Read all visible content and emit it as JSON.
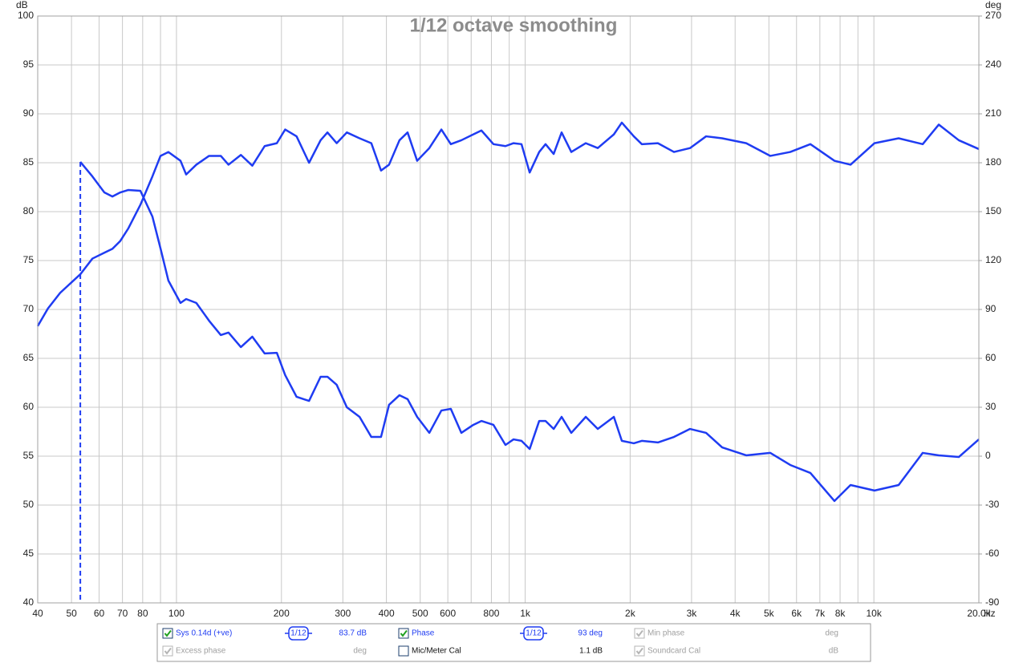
{
  "chart_data": {
    "type": "line",
    "title": "1/12 octave smoothing",
    "y_label": "dB",
    "y2_label": "deg",
    "x_label": "Hz",
    "log_x": true,
    "grid": true,
    "xlim": [
      40,
      20000
    ],
    "xticks": [
      40,
      50,
      60,
      70,
      80,
      100,
      200,
      300,
      400,
      500,
      600,
      800,
      {
        "value": 1000,
        "label": "1k"
      },
      {
        "value": 2000,
        "label": "2k"
      },
      {
        "value": 3000,
        "label": "3k"
      },
      {
        "value": 4000,
        "label": "4k"
      },
      {
        "value": 5000,
        "label": "5k"
      },
      {
        "value": 6000,
        "label": "6k"
      },
      {
        "value": 7000,
        "label": "7k"
      },
      {
        "value": 8000,
        "label": "8k"
      },
      {
        "value": 10000,
        "label": "10k"
      },
      {
        "value": 20000,
        "label": "20.0k"
      }
    ],
    "xminor": [
      90,
      700,
      900,
      9000
    ],
    "ylim": [
      40,
      100
    ],
    "yticks": [
      40,
      45,
      50,
      55,
      60,
      65,
      70,
      75,
      80,
      85,
      90,
      95,
      100
    ],
    "y2lim": [
      -90,
      270
    ],
    "y2ticks": [
      -90,
      -60,
      -30,
      0,
      30,
      60,
      90,
      120,
      150,
      180,
      210,
      240,
      270
    ],
    "x": [
      40,
      42.8,
      46.4,
      53,
      57.4,
      62.1,
      65.5,
      69,
      72.8,
      78.8,
      85.3,
      90,
      94.8,
      102.7,
      106.6,
      114,
      124,
      134,
      141,
      153,
      165,
      179,
      194,
      205,
      221,
      240,
      259,
      271,
      288,
      308,
      335,
      362,
      386,
      407,
      436,
      460,
      490,
      531,
      575,
      612,
      656,
      710,
      749,
      811,
      878,
      926,
      976,
      1030,
      1097,
      1144,
      1207,
      1272,
      1356,
      1492,
      1615,
      1796,
      1893,
      2049,
      2160,
      2402,
      2671,
      2970,
      3302,
      3672,
      4304,
      5047,
      5756,
      6575,
      7708,
      8571,
      10040,
      11776,
      13804,
      15348,
      17520,
      20000
    ],
    "series": [
      {
        "name": "Sys 0.14d (+ve)",
        "color": "#1f3cf2",
        "smoothing": "1/12",
        "readout": "83.7 dB",
        "checked": true,
        "values": [
          68.3,
          70.1,
          71.7,
          73.6,
          75.2,
          75.8,
          76.2,
          77.0,
          78.3,
          80.7,
          83.6,
          85.7,
          86.1,
          85.2,
          83.8,
          84.8,
          85.7,
          85.7,
          84.8,
          85.8,
          84.7,
          86.7,
          87.0,
          88.4,
          87.7,
          85.0,
          87.3,
          88.1,
          87.0,
          88.1,
          87.5,
          87.0,
          84.2,
          84.8,
          87.3,
          88.1,
          85.2,
          86.5,
          88.4,
          86.9,
          87.3,
          87.9,
          88.3,
          86.9,
          86.7,
          87.0,
          86.9,
          84.0,
          86.1,
          86.9,
          85.9,
          88.1,
          86.1,
          87.0,
          86.5,
          87.9,
          89.1,
          87.7,
          86.9,
          87.0,
          86.1,
          86.5,
          87.7,
          87.5,
          87.0,
          85.7,
          86.1,
          86.9,
          85.2,
          84.8,
          87.0,
          87.5,
          86.9,
          88.9,
          87.3,
          86.4
        ]
      },
      {
        "name": "Phase",
        "color": "#1f3cf2",
        "axis": "y2",
        "smoothing": "1/12",
        "readout": "93 deg",
        "checked": true,
        "start_marker": true,
        "values": [
          null,
          null,
          null,
          180.5,
          171.6,
          161.8,
          159.3,
          161.8,
          163.3,
          162.8,
          147,
          127.4,
          107.7,
          94,
          96.4,
          94,
          83.1,
          74.3,
          75.8,
          66.9,
          73.3,
          63,
          63.4,
          49.7,
          36.4,
          33.9,
          48.7,
          48.7,
          43.8,
          30,
          24.1,
          11.8,
          11.8,
          31.5,
          37.4,
          35,
          24.1,
          14.3,
          28,
          29,
          14.3,
          19.2,
          21.6,
          19.2,
          6.9,
          10.3,
          9.4,
          4.4,
          21.6,
          21.6,
          16.7,
          24.1,
          14.3,
          24.1,
          16.7,
          24.1,
          9.4,
          7.9,
          9.4,
          8.4,
          11.8,
          16.7,
          14.3,
          5.4,
          0.5,
          2,
          -5.4,
          -10.3,
          -27.5,
          -17.7,
          -21.1,
          -17.7,
          2,
          0.5,
          -0.5,
          10.3
        ]
      }
    ]
  },
  "panel_items": [
    {
      "label": "Min phase",
      "readout": "deg",
      "checked": true,
      "enabled": false
    },
    {
      "label": "Excess phase",
      "readout": "deg",
      "checked": true,
      "enabled": false
    },
    {
      "label": "Mic/Meter Cal",
      "readout": "1.1 dB",
      "checked": false,
      "enabled": true
    },
    {
      "label": "Soundcard Cal",
      "readout": "dB",
      "checked": true,
      "enabled": false
    }
  ]
}
